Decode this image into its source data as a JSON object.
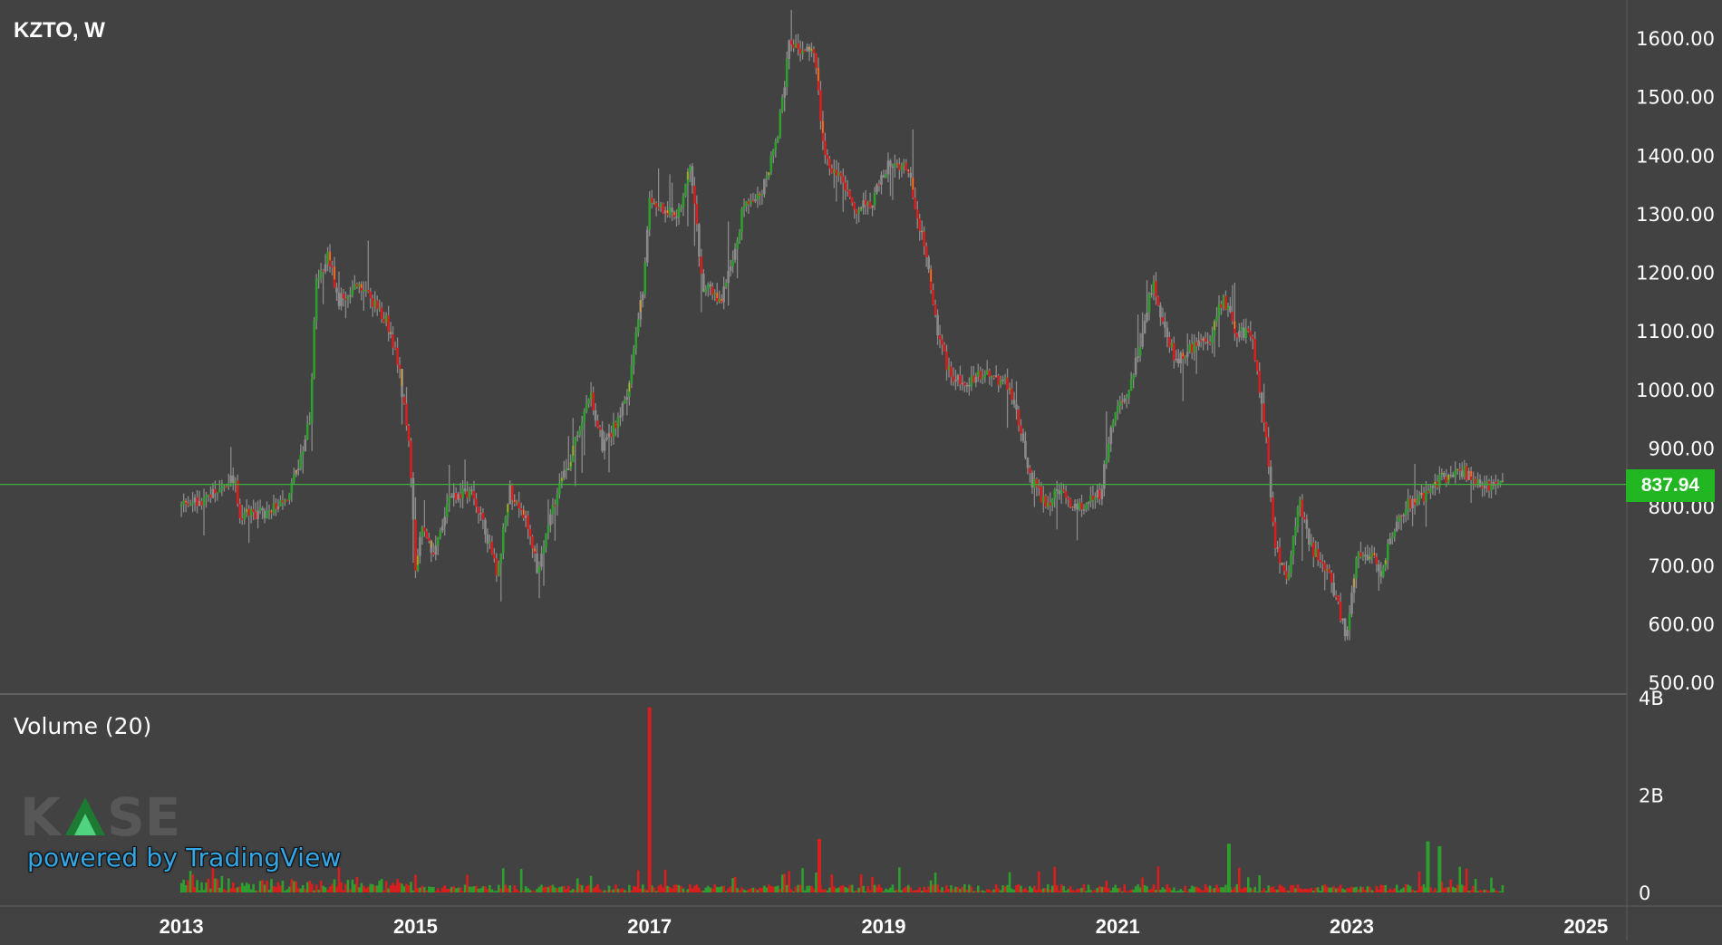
{
  "chart_title": "KZTO, W",
  "volume_label": "Volume (20)",
  "watermark": {
    "logo_text": "KASE",
    "powered_text": "powered by TradingView"
  },
  "last_price_label": "837.94",
  "colors": {
    "background": "#424242",
    "up": "#2e9e2e",
    "down": "#d81e1e",
    "neutral": "#8a8a8a",
    "last_price_line": "#3fae3f",
    "last_price_tag": "#22b722",
    "axis_text": "#ffffff",
    "divider": "#6a6a6a",
    "tradingview_blue": "#33a7e6"
  },
  "chart_data": [
    {
      "type": "ohlc",
      "title": "KZTO, W",
      "xlabel": "",
      "ylabel": "",
      "x_ticks": [
        "2013",
        "2015",
        "2017",
        "2019",
        "2021",
        "2023",
        "2025"
      ],
      "y_ticks": [
        "1600.00",
        "1500.00",
        "1400.00",
        "1300.00",
        "1200.00",
        "1100.00",
        "1000.00",
        "900.00",
        "800.00",
        "700.00",
        "600.00",
        "500.00"
      ],
      "xlim": [
        2011.45,
        2025.35
      ],
      "ylim": [
        480,
        1665
      ],
      "last_price": 837.94,
      "grid": false,
      "series_anchor_points": [
        [
          2013.0,
          800
        ],
        [
          2013.2,
          815
        ],
        [
          2013.35,
          830
        ],
        [
          2013.45,
          850
        ],
        [
          2013.5,
          785
        ],
        [
          2013.75,
          790
        ],
        [
          2013.9,
          810
        ],
        [
          2014.0,
          870
        ],
        [
          2014.1,
          950
        ],
        [
          2014.15,
          1180
        ],
        [
          2014.25,
          1230
        ],
        [
          2014.35,
          1150
        ],
        [
          2014.5,
          1180
        ],
        [
          2014.75,
          1120
        ],
        [
          2014.85,
          1050
        ],
        [
          2014.95,
          900
        ],
        [
          2015.0,
          700
        ],
        [
          2015.05,
          760
        ],
        [
          2015.15,
          720
        ],
        [
          2015.3,
          820
        ],
        [
          2015.5,
          820
        ],
        [
          2015.6,
          760
        ],
        [
          2015.7,
          680
        ],
        [
          2015.8,
          830
        ],
        [
          2015.95,
          780
        ],
        [
          2016.05,
          680
        ],
        [
          2016.15,
          790
        ],
        [
          2016.3,
          870
        ],
        [
          2016.5,
          990
        ],
        [
          2016.6,
          900
        ],
        [
          2016.8,
          980
        ],
        [
          2016.95,
          1180
        ],
        [
          2017.0,
          1330
        ],
        [
          2017.1,
          1310
        ],
        [
          2017.25,
          1300
        ],
        [
          2017.35,
          1380
        ],
        [
          2017.45,
          1180
        ],
        [
          2017.6,
          1150
        ],
        [
          2017.7,
          1210
        ],
        [
          2017.8,
          1310
        ],
        [
          2017.95,
          1330
        ],
        [
          2018.1,
          1440
        ],
        [
          2018.2,
          1600
        ],
        [
          2018.3,
          1570
        ],
        [
          2018.4,
          1590
        ],
        [
          2018.5,
          1390
        ],
        [
          2018.6,
          1370
        ],
        [
          2018.75,
          1310
        ],
        [
          2018.9,
          1320
        ],
        [
          2019.05,
          1390
        ],
        [
          2019.2,
          1380
        ],
        [
          2019.35,
          1240
        ],
        [
          2019.45,
          1110
        ],
        [
          2019.55,
          1030
        ],
        [
          2019.7,
          1010
        ],
        [
          2019.85,
          1030
        ],
        [
          2020.05,
          1010
        ],
        [
          2020.15,
          950
        ],
        [
          2020.25,
          850
        ],
        [
          2020.4,
          800
        ],
        [
          2020.5,
          830
        ],
        [
          2020.65,
          800
        ],
        [
          2020.85,
          820
        ],
        [
          2020.95,
          950
        ],
        [
          2021.1,
          1000
        ],
        [
          2021.3,
          1180
        ],
        [
          2021.4,
          1100
        ],
        [
          2021.5,
          1050
        ],
        [
          2021.7,
          1080
        ],
        [
          2021.8,
          1090
        ],
        [
          2021.9,
          1160
        ],
        [
          2022.0,
          1100
        ],
        [
          2022.15,
          1090
        ],
        [
          2022.25,
          950
        ],
        [
          2022.35,
          730
        ],
        [
          2022.45,
          670
        ],
        [
          2022.55,
          810
        ],
        [
          2022.65,
          730
        ],
        [
          2022.8,
          690
        ],
        [
          2022.95,
          580
        ],
        [
          2023.05,
          720
        ],
        [
          2023.15,
          720
        ],
        [
          2023.25,
          690
        ],
        [
          2023.35,
          760
        ],
        [
          2023.45,
          800
        ],
        [
          2023.55,
          810
        ],
        [
          2023.65,
          820
        ],
        [
          2023.75,
          850
        ],
        [
          2023.85,
          850
        ],
        [
          2023.95,
          860
        ],
        [
          2024.1,
          840
        ],
        [
          2024.3,
          835
        ]
      ]
    },
    {
      "type": "bar",
      "title": "Volume (20)",
      "y_ticks": [
        "4B",
        "2B",
        "0"
      ],
      "ylim": [
        0,
        4.0
      ],
      "unit": "B",
      "notable_bars": [
        {
          "x": 2017.0,
          "value": 3.8,
          "direction": "down"
        },
        {
          "x": 2018.45,
          "value": 1.1,
          "direction": "down"
        },
        {
          "x": 2021.95,
          "value": 1.0,
          "direction": "up"
        },
        {
          "x": 2023.65,
          "value": 1.05,
          "direction": "up"
        },
        {
          "x": 2023.75,
          "value": 0.95,
          "direction": "up"
        }
      ],
      "typical_range": [
        0.02,
        0.45
      ],
      "dense_range_before": 2015.0
    }
  ]
}
